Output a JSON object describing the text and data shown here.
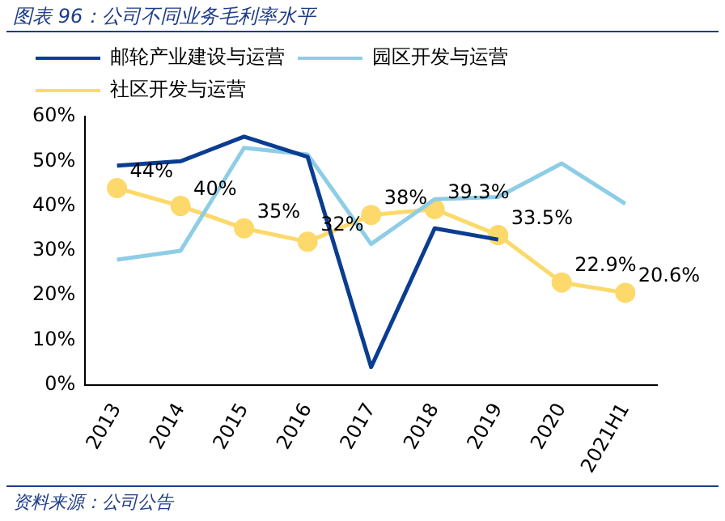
{
  "chart_data": {
    "type": "line",
    "title": "图表 96：公司不同业务毛利率水平",
    "categories": [
      "2013",
      "2014",
      "2015",
      "2016",
      "2017",
      "2018",
      "2019",
      "2020",
      "2021H1"
    ],
    "series": [
      {
        "name": "邮轮产业建设与运营",
        "color": "#0a3d91",
        "marker": "none",
        "values": [
          49,
          50,
          55.5,
          51,
          4,
          35,
          32.5,
          null,
          null
        ]
      },
      {
        "name": "园区开发与运营",
        "color": "#8ecde6",
        "marker": "none",
        "values": [
          28,
          30,
          53,
          51.5,
          31.5,
          41.5,
          42,
          49.5,
          40.5
        ]
      },
      {
        "name": "社区开发与运营",
        "color": "#fcd96a",
        "marker": "circle",
        "values": [
          44,
          40,
          35,
          32,
          38,
          39.3,
          33.5,
          22.9,
          20.6
        ],
        "value_labels": [
          "44%",
          "40%",
          "35%",
          "32%",
          "38%",
          "39.3%",
          "33.5%",
          "22.9%",
          "20.6%"
        ]
      }
    ],
    "ylim": [
      0,
      60
    ],
    "yticks": [
      {
        "value": 0,
        "label": "0%"
      },
      {
        "value": 10,
        "label": "10%"
      },
      {
        "value": 20,
        "label": "20%"
      },
      {
        "value": 30,
        "label": "30%"
      },
      {
        "value": 40,
        "label": "40%"
      },
      {
        "value": 50,
        "label": "50%"
      },
      {
        "value": 60,
        "label": "60%"
      }
    ],
    "grid": false,
    "legend": "top",
    "annotations": [
      "资料来源：公司公告"
    ]
  }
}
